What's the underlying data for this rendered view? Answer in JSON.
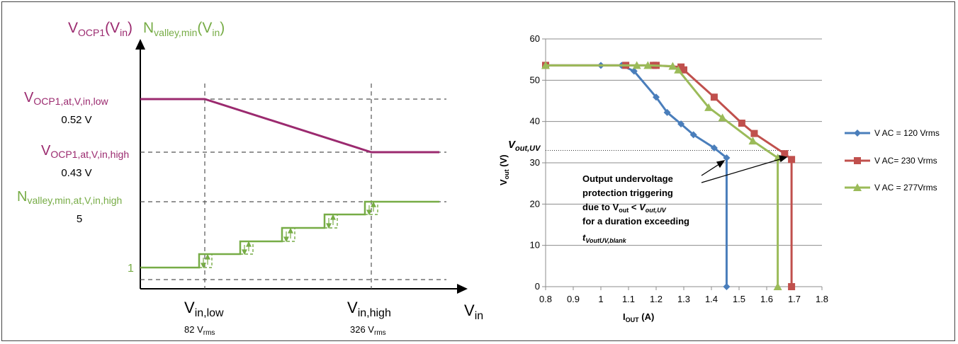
{
  "colors": {
    "ocp": "#9b2a6f",
    "valley": "#77ac46",
    "blue": "#4a7ebb",
    "red": "#c0504d",
    "green": "#9bbb59",
    "axis": "#000000",
    "dash": "#555555",
    "grid": "#8c8c8c"
  },
  "left": {
    "y_title_ocp": {
      "main": "V",
      "sub": "OCP1",
      "tail": "(V",
      "tail_sub": "in",
      "end": ")"
    },
    "y_title_valley": {
      "main": "N",
      "sub": "valley,min",
      "tail": "(V",
      "tail_sub": "in",
      "end": ")"
    },
    "ocp_low_label": {
      "main": "V",
      "sub": "OCP1,at,V,in,low"
    },
    "ocp_low_value": "0.52 V",
    "ocp_high_label": {
      "main": "V",
      "sub": "OCP1,at,V,in,high"
    },
    "ocp_high_value": "0.43 V",
    "valley_high_label": {
      "main": "N",
      "sub": "valley,min,at,V,in,high"
    },
    "valley_high_value": "5",
    "valley_low_value": "1",
    "x_low": {
      "main": "V",
      "sub": "in,low",
      "value": "82 V",
      "value_sub": "rms"
    },
    "x_high": {
      "main": "V",
      "sub": "in,high",
      "value": "326 V",
      "value_sub": "rms"
    },
    "x_title": {
      "main": "V",
      "sub": "in"
    }
  },
  "chart_data": {
    "type": "line",
    "xlabel": {
      "main": "I",
      "sub": "OUT",
      "tail": " (A)"
    },
    "ylabel": {
      "main": "V",
      "sub": "out",
      "tail": " (V)"
    },
    "xlim": [
      0.8,
      1.8
    ],
    "ylim": [
      0,
      60
    ],
    "x_ticks": [
      "0.8",
      "0.9",
      "1",
      "1.1",
      "1.2",
      "1.3",
      "1.4",
      "1.5",
      "1.6",
      "1.7",
      "1.8"
    ],
    "y_ticks": [
      "0",
      "10",
      "20",
      "30",
      "40",
      "50",
      "60"
    ],
    "grid": "horizontal",
    "legend_position": "right",
    "threshold": {
      "y": 33,
      "label_main": "V",
      "label_sub": "out,UV"
    },
    "series": [
      {
        "name": "V AC = 120 Vrms",
        "color": "#4a7ebb",
        "marker": "diamond",
        "points": [
          [
            0.8,
            53.6
          ],
          [
            1.0,
            53.6
          ],
          [
            1.075,
            53.6
          ],
          [
            1.12,
            52.2
          ],
          [
            1.2,
            45.9
          ],
          [
            1.24,
            42.2
          ],
          [
            1.29,
            39.4
          ],
          [
            1.335,
            36.8
          ],
          [
            1.41,
            33.6
          ],
          [
            1.455,
            31.2
          ],
          [
            1.455,
            0
          ]
        ]
      },
      {
        "name": "V AC= 230 Vrms",
        "color": "#c0504d",
        "marker": "square",
        "points": [
          [
            0.8,
            53.6
          ],
          [
            1.09,
            53.6
          ],
          [
            1.19,
            53.6
          ],
          [
            1.2,
            53.6
          ],
          [
            1.29,
            53.2
          ],
          [
            1.3,
            52.5
          ],
          [
            1.41,
            45.9
          ],
          [
            1.51,
            39.6
          ],
          [
            1.555,
            37.1
          ],
          [
            1.665,
            32.2
          ],
          [
            1.69,
            30.8
          ],
          [
            1.69,
            0
          ]
        ]
      },
      {
        "name": "V AC = 277Vrms",
        "color": "#9bbb59",
        "marker": "triangle",
        "points": [
          [
            0.8,
            53.6
          ],
          [
            1.13,
            53.6
          ],
          [
            1.17,
            53.6
          ],
          [
            1.26,
            53.4
          ],
          [
            1.28,
            52.5
          ],
          [
            1.39,
            43.4
          ],
          [
            1.44,
            40.9
          ],
          [
            1.55,
            35.3
          ],
          [
            1.64,
            31.2
          ],
          [
            1.64,
            0
          ]
        ]
      }
    ],
    "annotation": {
      "line1": "Output undervoltage",
      "line2": "protection triggering",
      "line3_pre": "due to V",
      "line3_sub": "out",
      "line3_mid": " < ",
      "line3_em": "V",
      "line3_em_sub": "out,UV",
      "line4": "for a duration exceeding",
      "line5_main": "t",
      "line5_sub": "VoutUV,blank"
    }
  }
}
